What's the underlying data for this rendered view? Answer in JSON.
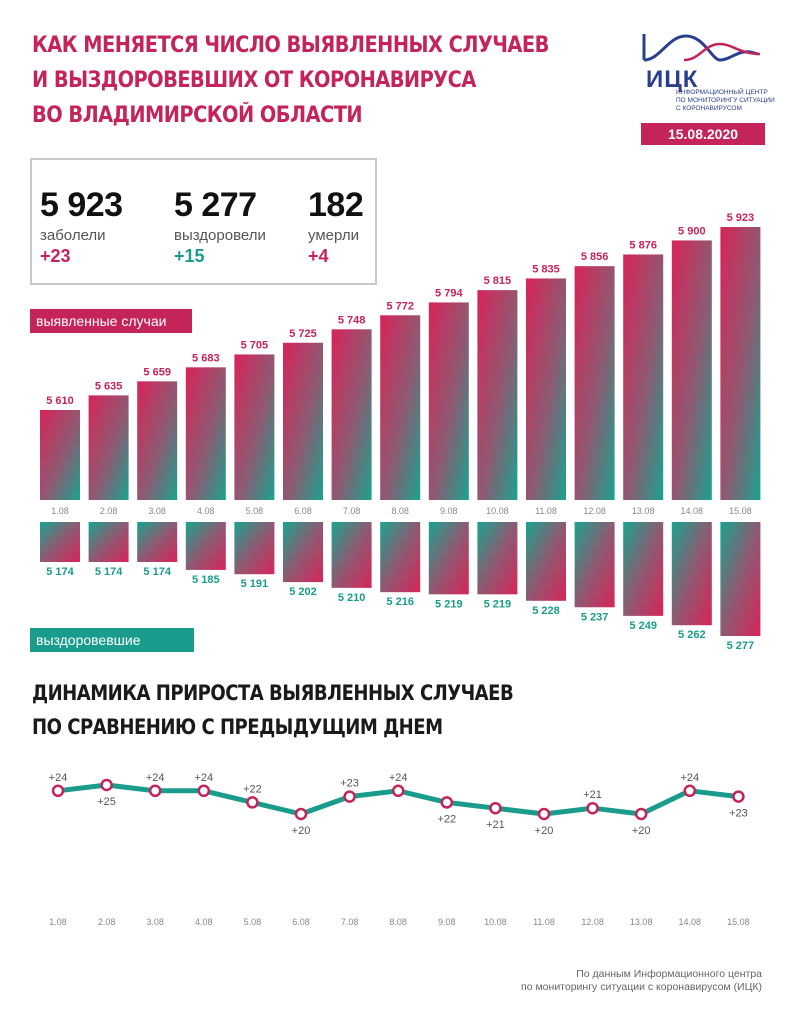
{
  "header": {
    "title_lines": [
      "КАК МЕНЯЕТСЯ ЧИСЛО ВЫЯВЛЕННЫХ СЛУЧАЕВ",
      "И ВЫЗДОРОВЕВШИХ ОТ КОРОНАВИРУСА",
      "ВО ВЛАДИМИРСКОЙ ОБЛАСТИ"
    ],
    "logo_name": "ИЦК",
    "logo_sub_lines": [
      "ИНФОРМАЦИОННЫЙ ЦЕНТР",
      "ПО МОНИТОРИНГУ СИТУАЦИИ",
      "С КОРОНАВИРУСОМ"
    ],
    "date": "15.08.2020"
  },
  "stats": [
    {
      "value": "5 923",
      "label": "заболели",
      "delta": "+23"
    },
    {
      "value": "5 277",
      "label": "выздоровели",
      "delta": "+15"
    },
    {
      "value": "182",
      "label": "умерли",
      "delta": "+4"
    }
  ],
  "labels": {
    "detected": "выявленные случаи",
    "recovered": "выздоровевшие"
  },
  "colors": {
    "accent_pink": "#c4245a",
    "accent_teal": "#1a9c8c"
  },
  "section2": {
    "title_lines": [
      "ДИНАМИКА ПРИРОСТА ВЫЯВЛЕННЫХ СЛУЧАЕВ",
      "ПО СРАВНЕНИЮ С ПРЕДЫДУЩИМ ДНЕМ"
    ]
  },
  "source_lines": [
    "По данным Информационного центра",
    "по мониторингу ситуации с коронавирусом (ИЦК)"
  ],
  "chart_data": [
    {
      "type": "bar",
      "categories": [
        "1.08",
        "2.08",
        "3.08",
        "4.08",
        "5.08",
        "6.08",
        "7.08",
        "8.08",
        "9.08",
        "10.08",
        "11.08",
        "12.08",
        "13.08",
        "14.08",
        "15.08"
      ],
      "series": [
        {
          "name": "выявленные случаи",
          "values": [
            5610,
            5635,
            5659,
            5683,
            5705,
            5725,
            5748,
            5772,
            5794,
            5815,
            5835,
            5856,
            5876,
            5900,
            5923
          ],
          "labels": [
            "5 610",
            "5 635",
            "5 659",
            "5 683",
            "5 705",
            "5 725",
            "5 748",
            "5 772",
            "5 794",
            "5 815",
            "5 835",
            "5 856",
            "5 876",
            "5 900",
            "5 923"
          ]
        },
        {
          "name": "выздоровевшие",
          "values": [
            5174,
            5174,
            5174,
            5185,
            5191,
            5202,
            5210,
            5216,
            5219,
            5219,
            5228,
            5237,
            5249,
            5262,
            5277
          ],
          "labels": [
            "5 174",
            "5 174",
            "5 174",
            "5 185",
            "5 191",
            "5 202",
            "5 210",
            "5 216",
            "5 219",
            "5 219",
            "5 228",
            "5 237",
            "5 249",
            "5 262",
            "5 277"
          ]
        }
      ]
    },
    {
      "type": "line",
      "categories": [
        "1.08",
        "2.08",
        "3.08",
        "4.08",
        "5.08",
        "6.08",
        "7.08",
        "8.08",
        "9.08",
        "10.08",
        "11.08",
        "12.08",
        "13.08",
        "14.08",
        "15.08"
      ],
      "values": [
        24,
        25,
        24,
        24,
        22,
        20,
        23,
        24,
        22,
        21,
        20,
        21,
        20,
        24,
        23
      ],
      "labels": [
        "+24",
        "+25",
        "+24",
        "+24",
        "+22",
        "+20",
        "+23",
        "+24",
        "+22",
        "+21",
        "+20",
        "+21",
        "+20",
        "+24",
        "+23"
      ]
    }
  ]
}
